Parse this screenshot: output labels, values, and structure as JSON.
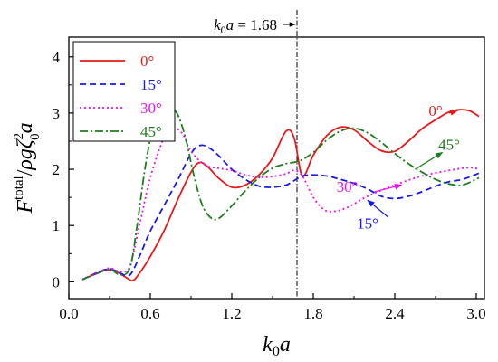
{
  "chart_data": {
    "type": "line",
    "xlabel": "k0a",
    "ylabel": "Ftotal/ρgζ02a",
    "xlim": [
      0.0,
      3.06
    ],
    "ylim": [
      -0.3,
      4.35
    ],
    "xticks": [
      "0.0",
      "0.6",
      "1.2",
      "1.8",
      "2.4",
      "3.0"
    ],
    "yticks": [
      "0",
      "1",
      "2",
      "3",
      "4"
    ],
    "xtick_values": [
      0.0,
      0.6,
      1.2,
      1.8,
      2.4,
      3.0
    ],
    "ytick_values": [
      0,
      1,
      2,
      3,
      4
    ],
    "grid": false,
    "legend_position": "top-left",
    "reference_line": {
      "x": 1.68,
      "label": "k0a = 1.68"
    },
    "series": [
      {
        "name": "0°",
        "color": "#e8191c",
        "dash": "solid",
        "x": [
          0.1,
          0.2,
          0.28,
          0.35,
          0.42,
          0.47,
          0.52,
          0.6,
          0.7,
          0.8,
          0.9,
          0.96,
          1.02,
          1.1,
          1.2,
          1.3,
          1.4,
          1.5,
          1.6,
          1.66,
          1.72,
          1.8,
          1.9,
          2.0,
          2.1,
          2.2,
          2.3,
          2.4,
          2.5,
          2.6,
          2.7,
          2.8,
          2.88,
          2.95,
          3.02
        ],
        "values": [
          0.04,
          0.14,
          0.21,
          0.18,
          0.08,
          0.02,
          0.15,
          0.45,
          0.9,
          1.45,
          1.95,
          2.12,
          2.05,
          1.85,
          1.68,
          1.72,
          1.9,
          2.2,
          2.68,
          2.55,
          1.88,
          2.25,
          2.6,
          2.75,
          2.7,
          2.5,
          2.33,
          2.32,
          2.5,
          2.72,
          2.88,
          3.02,
          3.06,
          3.04,
          2.94
        ]
      },
      {
        "name": "15°",
        "color": "#1a1ae6",
        "dash": "dashed",
        "x": [
          0.1,
          0.2,
          0.3,
          0.38,
          0.45,
          0.52,
          0.6,
          0.7,
          0.8,
          0.9,
          0.96,
          1.02,
          1.1,
          1.2,
          1.3,
          1.4,
          1.5,
          1.6,
          1.66,
          1.72,
          1.8,
          1.9,
          2.0,
          2.1,
          2.2,
          2.3,
          2.4,
          2.5,
          2.6,
          2.7,
          2.8,
          2.9,
          3.02
        ],
        "values": [
          0.04,
          0.15,
          0.23,
          0.15,
          0.12,
          0.45,
          0.9,
          1.35,
          1.8,
          2.28,
          2.42,
          2.4,
          2.25,
          2.0,
          1.82,
          1.7,
          1.68,
          1.72,
          1.8,
          1.88,
          1.9,
          1.88,
          1.82,
          1.75,
          1.65,
          1.52,
          1.48,
          1.52,
          1.6,
          1.7,
          1.78,
          1.82,
          1.93
        ]
      },
      {
        "name": "30°",
        "color": "#ee11ee",
        "dash": "dotted",
        "x": [
          0.1,
          0.2,
          0.3,
          0.38,
          0.45,
          0.52,
          0.6,
          0.7,
          0.78,
          0.84,
          0.9,
          1.0,
          1.1,
          1.2,
          1.3,
          1.4,
          1.5,
          1.6,
          1.66,
          1.72,
          1.8,
          1.88,
          1.95,
          2.05,
          2.2,
          2.4,
          2.6,
          2.8,
          2.95,
          3.02
        ],
        "values": [
          0.04,
          0.16,
          0.24,
          0.18,
          0.28,
          1.0,
          1.85,
          2.55,
          2.72,
          2.62,
          2.32,
          2.08,
          2.02,
          1.98,
          1.9,
          1.86,
          1.87,
          1.92,
          1.98,
          1.88,
          1.5,
          1.28,
          1.25,
          1.32,
          1.52,
          1.72,
          1.88,
          1.98,
          2.03,
          2.0
        ]
      },
      {
        "name": "45°",
        "color": "#1e7d1e",
        "dash": "dashdot",
        "x": [
          0.1,
          0.2,
          0.3,
          0.38,
          0.45,
          0.5,
          0.56,
          0.62,
          0.68,
          0.74,
          0.8,
          0.86,
          0.92,
          0.98,
          1.04,
          1.1,
          1.2,
          1.3,
          1.4,
          1.5,
          1.6,
          1.7,
          1.8,
          1.9,
          2.0,
          2.1,
          2.2,
          2.3,
          2.4,
          2.5,
          2.6,
          2.7,
          2.8,
          2.9,
          3.02
        ],
        "values": [
          0.04,
          0.14,
          0.22,
          0.12,
          0.25,
          0.95,
          2.0,
          2.75,
          3.02,
          3.1,
          2.98,
          2.55,
          1.9,
          1.38,
          1.15,
          1.12,
          1.35,
          1.62,
          1.85,
          2.02,
          2.1,
          2.15,
          2.3,
          2.52,
          2.68,
          2.73,
          2.65,
          2.48,
          2.28,
          2.1,
          1.95,
          1.82,
          1.74,
          1.72,
          1.85
        ]
      }
    ],
    "annotations": [
      {
        "text": "0°",
        "color": "#e8191c",
        "arrow_from": [
          2.8,
          3.0
        ],
        "arrow_to": [
          2.86,
          3.04
        ],
        "text_at": [
          2.7,
          2.95
        ]
      },
      {
        "text": "45°",
        "color": "#1e7d1e",
        "arrow_from": [
          2.55,
          2.0
        ],
        "arrow_to": [
          2.75,
          2.3
        ],
        "text_at": [
          2.8,
          2.35
        ]
      },
      {
        "text": "30°",
        "color": "#ee11ee",
        "arrow_from": [
          2.25,
          1.6
        ],
        "arrow_to": [
          2.45,
          1.72
        ],
        "text_at": [
          2.05,
          1.6
        ]
      },
      {
        "text": "15°",
        "color": "#1a1ae6",
        "arrow_from": [
          2.35,
          1.15
        ],
        "arrow_to": [
          2.2,
          1.45
        ],
        "text_at": [
          2.2,
          0.95
        ]
      }
    ]
  }
}
